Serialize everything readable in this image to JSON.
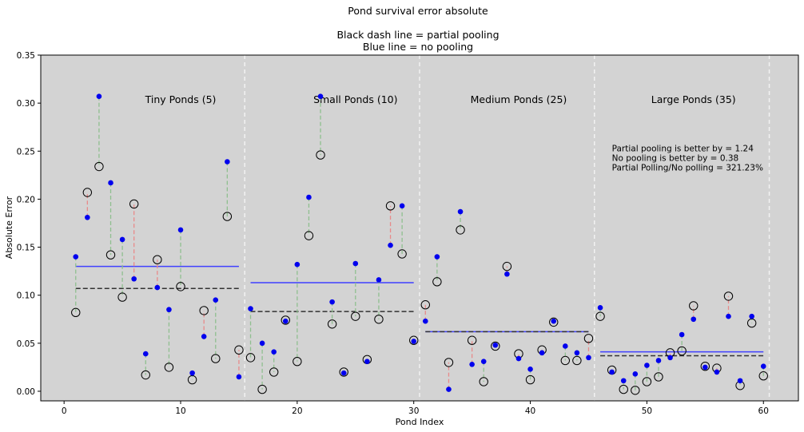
{
  "chart_data": {
    "type": "scatter",
    "title_lines": [
      "Pond survival error absolute",
      "",
      "Black dash line = partial pooling",
      "Blue line = no pooling"
    ],
    "xlabel": "Pond Index",
    "ylabel": "Absolute Error",
    "xlim": [
      -2,
      63
    ],
    "ylim": [
      -0.01,
      0.35
    ],
    "xticks": [
      0,
      10,
      20,
      30,
      40,
      50,
      60
    ],
    "yticks": [
      0.0,
      0.05,
      0.1,
      0.15,
      0.2,
      0.25,
      0.3,
      0.35
    ],
    "ytick_labels": [
      "0.00",
      "0.05",
      "0.10",
      "0.15",
      "0.20",
      "0.25",
      "0.30",
      "0.35"
    ],
    "plot_background": "#d3d3d3",
    "group_dividers": [
      15.5,
      30.5,
      45.5,
      60.5
    ],
    "groups": [
      {
        "label": "Tiny Ponds (5)",
        "label_x": 10,
        "label_y": 0.3,
        "start": 1,
        "end": 15,
        "no_pooling_mean": 0.13,
        "partial_pooling_mean": 0.107
      },
      {
        "label": "Small Ponds (10)",
        "label_x": 25,
        "label_y": 0.3,
        "start": 16,
        "end": 30,
        "no_pooling_mean": 0.113,
        "partial_pooling_mean": 0.083
      },
      {
        "label": "Medium Ponds (25)",
        "label_x": 39,
        "label_y": 0.3,
        "start": 31,
        "end": 45,
        "no_pooling_mean": 0.062,
        "partial_pooling_mean": 0.062
      },
      {
        "label": "Large Ponds (35)",
        "label_x": 54,
        "label_y": 0.3,
        "start": 46,
        "end": 60,
        "no_pooling_mean": 0.041,
        "partial_pooling_mean": 0.037
      }
    ],
    "annotation_lines": [
      "Partial pooling is better by = 1.24",
      "No pooling is better by = 0.38",
      "Partial Polling/No polling = 321.23%"
    ],
    "annotation_x": 47,
    "annotation_y": 0.25,
    "series": [
      {
        "name": "No pooling",
        "color": "#0000ee",
        "marker": "filled-circle",
        "x": [
          1,
          2,
          3,
          4,
          5,
          6,
          7,
          8,
          9,
          10,
          11,
          12,
          13,
          14,
          15,
          16,
          17,
          18,
          19,
          20,
          21,
          22,
          23,
          24,
          25,
          26,
          27,
          28,
          29,
          30,
          31,
          32,
          33,
          34,
          35,
          36,
          37,
          38,
          39,
          40,
          41,
          42,
          43,
          44,
          45,
          46,
          47,
          48,
          49,
          50,
          51,
          52,
          53,
          54,
          55,
          56,
          57,
          58,
          59,
          60
        ],
        "y": [
          0.14,
          0.181,
          0.307,
          0.217,
          0.158,
          0.117,
          0.039,
          0.108,
          0.085,
          0.168,
          0.019,
          0.057,
          0.095,
          0.239,
          0.015,
          0.086,
          0.05,
          0.041,
          0.073,
          0.132,
          0.202,
          0.307,
          0.093,
          0.019,
          0.133,
          0.031,
          0.116,
          0.152,
          0.193,
          0.052,
          0.073,
          0.14,
          0.002,
          0.187,
          0.028,
          0.031,
          0.048,
          0.122,
          0.034,
          0.023,
          0.04,
          0.073,
          0.047,
          0.04,
          0.035,
          0.087,
          0.02,
          0.011,
          0.018,
          0.027,
          0.032,
          0.035,
          0.059,
          0.075,
          0.025,
          0.02,
          0.078,
          0.011,
          0.078,
          0.026
        ]
      },
      {
        "name": "Partial pooling",
        "color": "#000000",
        "marker": "hollow-circle",
        "x": [
          1,
          2,
          3,
          4,
          5,
          6,
          7,
          8,
          9,
          10,
          11,
          12,
          13,
          14,
          15,
          16,
          17,
          18,
          19,
          20,
          21,
          22,
          23,
          24,
          25,
          26,
          27,
          28,
          29,
          30,
          31,
          32,
          33,
          34,
          35,
          36,
          37,
          38,
          39,
          40,
          41,
          42,
          43,
          44,
          45,
          46,
          47,
          48,
          49,
          50,
          51,
          52,
          53,
          54,
          55,
          56,
          57,
          58,
          59,
          60
        ],
        "y": [
          0.082,
          0.207,
          0.234,
          0.142,
          0.098,
          0.195,
          0.017,
          0.137,
          0.025,
          0.109,
          0.012,
          0.084,
          0.034,
          0.182,
          0.043,
          0.035,
          0.002,
          0.02,
          0.074,
          0.031,
          0.162,
          0.246,
          0.07,
          0.02,
          0.078,
          0.033,
          0.075,
          0.193,
          0.143,
          0.053,
          0.09,
          0.114,
          0.03,
          0.168,
          0.053,
          0.01,
          0.047,
          0.13,
          0.039,
          0.012,
          0.043,
          0.072,
          0.032,
          0.032,
          0.055,
          0.078,
          0.022,
          0.002,
          0.001,
          0.01,
          0.015,
          0.04,
          0.042,
          0.089,
          0.026,
          0.024,
          0.099,
          0.006,
          0.071,
          0.016
        ]
      }
    ],
    "connector_colors": {
      "partial_better": "#8fbf8f",
      "no_pooling_better": "#e88a8a"
    },
    "mean_line_colors": {
      "no_pooling": "#4040ff",
      "partial_pooling": "#333333"
    },
    "grid": false,
    "legend": "none"
  }
}
